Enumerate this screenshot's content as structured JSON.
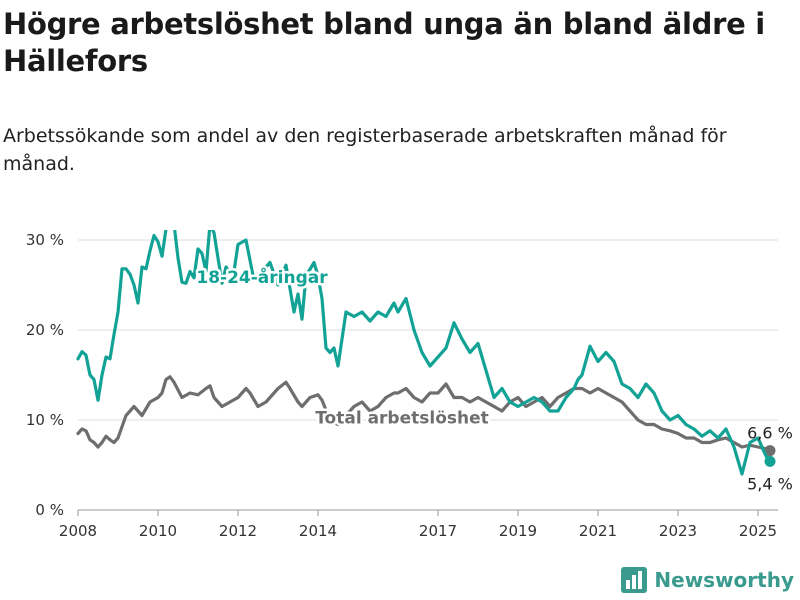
{
  "header": {
    "title": "Högre arbetslöshet bland unga än bland äldre i Hällefors",
    "subtitle": "Arbetssökande som andel av den registerbaserade arbetskraften månad för månad."
  },
  "brand": {
    "name": "Newsworthy",
    "color": "#3a9a8e",
    "icon": "bar-chart-icon"
  },
  "chart_data": {
    "type": "line",
    "title": "Högre arbetslöshet bland unga än bland äldre i Hällefors",
    "subtitle": "Arbetssökande som andel av den registerbaserade arbetskraften månad för månad.",
    "xlabel": "",
    "ylabel": "",
    "xlim": [
      2008,
      2025.5
    ],
    "ylim": [
      0,
      30
    ],
    "yticks": [
      0,
      10,
      20,
      30
    ],
    "ytick_labels": [
      "0 %",
      "10 %",
      "20 %",
      "30 %"
    ],
    "xticks": [
      2008,
      2010,
      2012,
      2014,
      2017,
      2019,
      2021,
      2023,
      2025
    ],
    "xtick_labels": [
      "2008",
      "2010",
      "2012",
      "2014",
      "2017",
      "2019",
      "2021",
      "2023",
      "2025"
    ],
    "grid": true,
    "legend": "none",
    "series": [
      {
        "name": "18-24-åringar",
        "color": "#13a396",
        "end_label": "5,4 %",
        "x": [
          2008.0,
          2008.1,
          2008.2,
          2008.3,
          2008.4,
          2008.5,
          2008.6,
          2008.7,
          2008.8,
          2008.9,
          2009.0,
          2009.1,
          2009.2,
          2009.3,
          2009.4,
          2009.5,
          2009.6,
          2009.7,
          2009.8,
          2009.9,
          2010.0,
          2010.1,
          2010.2,
          2010.3,
          2010.4,
          2010.5,
          2010.6,
          2010.7,
          2010.8,
          2010.9,
          2011.0,
          2011.1,
          2011.2,
          2011.3,
          2011.4,
          2011.5,
          2011.6,
          2011.7,
          2011.8,
          2011.9,
          2012.0,
          2012.2,
          2012.4,
          2012.6,
          2012.8,
          2013.0,
          2013.2,
          2013.4,
          2013.5,
          2013.6,
          2013.7,
          2013.9,
          2014.0,
          2014.1,
          2014.2,
          2014.3,
          2014.4,
          2014.5,
          2014.6,
          2014.7,
          2014.9,
          2015.1,
          2015.3,
          2015.5,
          2015.7,
          2015.9,
          2016.0,
          2016.2,
          2016.4,
          2016.6,
          2016.8,
          2017.0,
          2017.2,
          2017.4,
          2017.6,
          2017.8,
          2018.0,
          2018.2,
          2018.4,
          2018.6,
          2018.8,
          2019.0,
          2019.2,
          2019.4,
          2019.6,
          2019.8,
          2020.0,
          2020.2,
          2020.4,
          2020.5,
          2020.6,
          2020.8,
          2021.0,
          2021.2,
          2021.4,
          2021.6,
          2021.8,
          2022.0,
          2022.2,
          2022.4,
          2022.6,
          2022.8,
          2023.0,
          2023.2,
          2023.4,
          2023.6,
          2023.8,
          2024.0,
          2024.2,
          2024.4,
          2024.6,
          2024.8,
          2025.0,
          2025.2,
          2025.3
        ],
        "y": [
          16.8,
          17.6,
          17.2,
          15.0,
          14.5,
          12.2,
          15.0,
          17.0,
          16.8,
          19.5,
          22.0,
          26.8,
          26.8,
          26.2,
          25.0,
          23.0,
          27.0,
          26.8,
          28.8,
          30.5,
          29.8,
          28.2,
          31.2,
          31.5,
          31.8,
          28.0,
          25.3,
          25.2,
          26.5,
          25.8,
          29.0,
          28.5,
          26.5,
          31.8,
          30.8,
          28.0,
          25.2,
          27.0,
          26.3,
          26.5,
          29.5,
          30.0,
          25.5,
          26.5,
          27.5,
          25.0,
          27.2,
          22.0,
          24.0,
          21.2,
          26.0,
          27.5,
          26.0,
          23.5,
          18.0,
          17.5,
          18.0,
          16.0,
          19.0,
          22.0,
          21.5,
          22.0,
          21.0,
          22.0,
          21.5,
          23.0,
          22.0,
          23.5,
          20.0,
          17.5,
          16.0,
          17.0,
          18.0,
          20.8,
          19.0,
          17.5,
          18.5,
          15.5,
          12.5,
          13.5,
          12.0,
          11.5,
          12.0,
          12.5,
          12.0,
          11.0,
          11.0,
          12.5,
          13.5,
          14.5,
          15.0,
          18.2,
          16.5,
          17.5,
          16.5,
          14.0,
          13.5,
          12.5,
          14.0,
          13.0,
          11.0,
          10.0,
          10.5,
          9.5,
          9.0,
          8.2,
          8.8,
          8.0,
          9.0,
          7.0,
          4.0,
          7.5,
          8.0,
          6.0,
          5.4
        ]
      },
      {
        "name": "Total arbetslöshet",
        "color": "#6e6e6e",
        "end_label": "6,6 %",
        "x": [
          2008.0,
          2008.1,
          2008.2,
          2008.3,
          2008.4,
          2008.5,
          2008.6,
          2008.7,
          2008.8,
          2008.9,
          2009.0,
          2009.2,
          2009.4,
          2009.6,
          2009.8,
          2010.0,
          2010.1,
          2010.2,
          2010.3,
          2010.4,
          2010.6,
          2010.8,
          2011.0,
          2011.2,
          2011.3,
          2011.4,
          2011.6,
          2011.8,
          2012.0,
          2012.2,
          2012.3,
          2012.5,
          2012.7,
          2012.9,
          2013.0,
          2013.2,
          2013.3,
          2013.5,
          2013.6,
          2013.8,
          2014.0,
          2014.1,
          2014.3,
          2014.5,
          2014.7,
          2014.9,
          2015.1,
          2015.3,
          2015.5,
          2015.7,
          2015.9,
          2016.0,
          2016.2,
          2016.4,
          2016.6,
          2016.8,
          2017.0,
          2017.2,
          2017.4,
          2017.6,
          2017.8,
          2018.0,
          2018.2,
          2018.4,
          2018.6,
          2018.8,
          2019.0,
          2019.2,
          2019.4,
          2019.6,
          2019.8,
          2020.0,
          2020.2,
          2020.4,
          2020.6,
          2020.8,
          2021.0,
          2021.2,
          2021.4,
          2021.6,
          2021.8,
          2022.0,
          2022.2,
          2022.4,
          2022.6,
          2022.8,
          2023.0,
          2023.2,
          2023.4,
          2023.6,
          2023.8,
          2024.0,
          2024.2,
          2024.4,
          2024.6,
          2024.8,
          2025.0,
          2025.2,
          2025.3
        ],
        "y": [
          8.5,
          9.0,
          8.8,
          7.8,
          7.5,
          7.0,
          7.5,
          8.2,
          7.8,
          7.5,
          8.0,
          10.5,
          11.5,
          10.5,
          12.0,
          12.5,
          13.0,
          14.5,
          14.8,
          14.2,
          12.5,
          13.0,
          12.8,
          13.5,
          13.8,
          12.5,
          11.5,
          12.0,
          12.5,
          13.5,
          13.0,
          11.5,
          12.0,
          13.0,
          13.5,
          14.2,
          13.5,
          12.0,
          11.5,
          12.5,
          12.8,
          12.2,
          10.0,
          9.5,
          10.5,
          11.5,
          12.0,
          11.0,
          11.5,
          12.5,
          13.0,
          13.0,
          13.5,
          12.5,
          12.0,
          13.0,
          13.0,
          14.0,
          12.5,
          12.5,
          12.0,
          12.5,
          12.0,
          11.5,
          11.0,
          12.0,
          12.5,
          11.5,
          12.0,
          12.5,
          11.5,
          12.5,
          13.0,
          13.5,
          13.5,
          13.0,
          13.5,
          13.0,
          12.5,
          12.0,
          11.0,
          10.0,
          9.5,
          9.5,
          9.0,
          8.8,
          8.5,
          8.0,
          8.0,
          7.5,
          7.5,
          7.8,
          8.0,
          7.5,
          7.0,
          7.2,
          7.0,
          6.8,
          6.6
        ]
      }
    ],
    "annotations": [
      {
        "text": "18-24-åringar",
        "series": "18-24-åringar",
        "x": 2012.6,
        "y": 25.2
      },
      {
        "text": "Total arbetslöshet",
        "series": "Total arbetslöshet",
        "x": 2016.1,
        "y": 9.6
      }
    ]
  }
}
